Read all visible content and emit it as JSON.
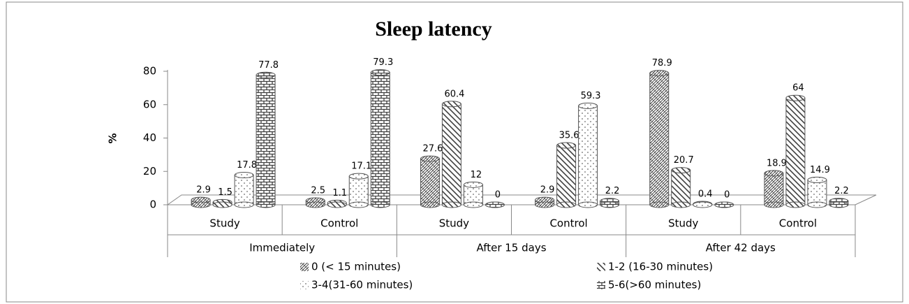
{
  "chart_data": {
    "type": "bar",
    "title": "Sleep latency",
    "y_label": "%",
    "groups": [
      "Immediately",
      "After 15 days",
      "After 42 days"
    ],
    "categories": [
      "Study",
      "Control",
      "Study",
      "Control",
      "Study",
      "Control"
    ],
    "series": [
      {
        "name": "0 (< 15 minutes)",
        "color": "#404040",
        "values": [
          2.9,
          2.5,
          27.6,
          2.9,
          78.9,
          18.9
        ]
      },
      {
        "name": "1-2 (16-30 minutes)",
        "color": "#404040",
        "values": [
          1.5,
          1.1,
          60.4,
          35.6,
          20.7,
          64
        ]
      },
      {
        "name": "3-4(31-60 minutes)",
        "color": "#404040",
        "values": [
          17.8,
          17.1,
          12,
          59.3,
          0.4,
          14.9
        ]
      },
      {
        "name": "5-6(>60 minutes)",
        "color": "#404040",
        "values": [
          77.8,
          79.3,
          0,
          2.2,
          0,
          2.2
        ]
      }
    ],
    "ylim": [
      0,
      80
    ],
    "yticks": [
      0,
      20,
      40,
      60,
      80
    ],
    "legend": "bottom"
  }
}
